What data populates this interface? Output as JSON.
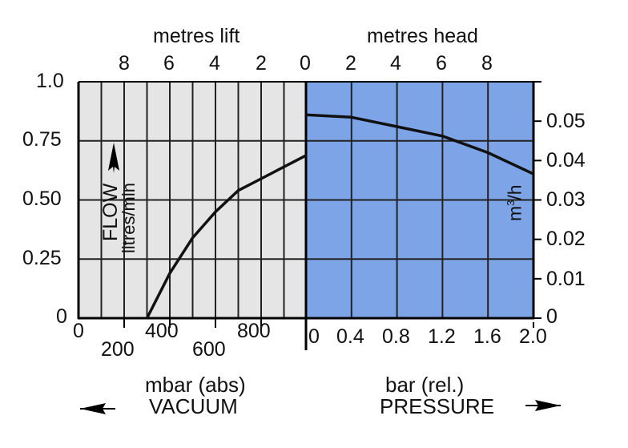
{
  "chart_data": {
    "type": "line",
    "title": "",
    "description": "Pump flow performance chart: flow vs vacuum (mbar abs) on the left half and pressure (bar rel.) on the right half",
    "panels": [
      {
        "name": "vacuum",
        "background": "#e5e5e5",
        "xlabel": "mbar (abs)",
        "xlabel_sub": "VACUUM",
        "x_direction": "left arrow",
        "xlim": [
          0,
          1000
        ],
        "xticks": [
          0,
          200,
          400,
          600,
          800
        ],
        "top_axis_label": "metres lift",
        "top_ticks": [
          8,
          6,
          4,
          2,
          0
        ],
        "series": [
          {
            "name": "Flow (vacuum)",
            "x": [
              300,
              400,
              500,
              600,
              700,
              800,
              900,
              1000
            ],
            "y": [
              0,
              0.19,
              0.34,
              0.45,
              0.54,
              0.59,
              0.64,
              0.69
            ]
          }
        ]
      },
      {
        "name": "pressure",
        "background": "#7ea4e8",
        "xlabel": "bar (rel.)",
        "xlabel_sub": "PRESSURE",
        "x_direction": "right arrow",
        "xlim": [
          0,
          2.0
        ],
        "xticks": [
          0,
          0.4,
          0.8,
          1.2,
          1.6,
          2.0
        ],
        "top_axis_label": "metres head",
        "top_ticks": [
          0,
          2,
          4,
          6,
          8
        ],
        "series": [
          {
            "name": "Flow (pressure)",
            "x": [
              0,
              0.4,
              0.8,
              1.2,
              1.6,
              2.0
            ],
            "y": [
              0.86,
              0.85,
              0.81,
              0.77,
              0.7,
              0.61
            ]
          }
        ]
      }
    ],
    "ylabel": "FLOW litres/min",
    "ylim": [
      0,
      1.0
    ],
    "yticks": [
      0,
      0.25,
      0.5,
      0.75,
      1.0
    ],
    "y2label": "m³/h",
    "y2lim": [
      0,
      0.06
    ],
    "y2ticks": [
      0,
      0.01,
      0.02,
      0.03,
      0.04,
      0.05
    ],
    "grid": true,
    "legend": "none"
  },
  "labels": {
    "top_left_title": "metres lift",
    "top_right_title": "metres head",
    "top_left_ticks": [
      "8",
      "6",
      "4",
      "2",
      "0"
    ],
    "top_right_ticks": [
      "0",
      "2",
      "4",
      "6",
      "8"
    ],
    "y_left_ticks": [
      "1.0",
      "0.75",
      "0.50",
      "0.25",
      "0"
    ],
    "y_right_ticks": [
      "0.05",
      "0.04",
      "0.03",
      "0.02",
      "0.01",
      "0"
    ],
    "x_vacuum_ticks": [
      "0",
      "200",
      "400",
      "600",
      "800"
    ],
    "x_pressure_ticks": [
      "0",
      "0.4",
      "0.8",
      "1.2",
      "1.6",
      "2.0"
    ],
    "flow_label": "FLOW",
    "flow_unit": "litres/min",
    "right_unit_base": "m",
    "right_unit_sup": "3",
    "right_unit_tail": "/h",
    "vacuum_unit": "mbar (abs)",
    "vacuum_label": "VACUUM",
    "pressure_unit": "bar (rel.)",
    "pressure_label": "PRESSURE"
  },
  "colors": {
    "vacuum_bg": "#e5e5e5",
    "pressure_bg": "#7ea4e8",
    "line": "#111111",
    "grid": "#222222"
  }
}
